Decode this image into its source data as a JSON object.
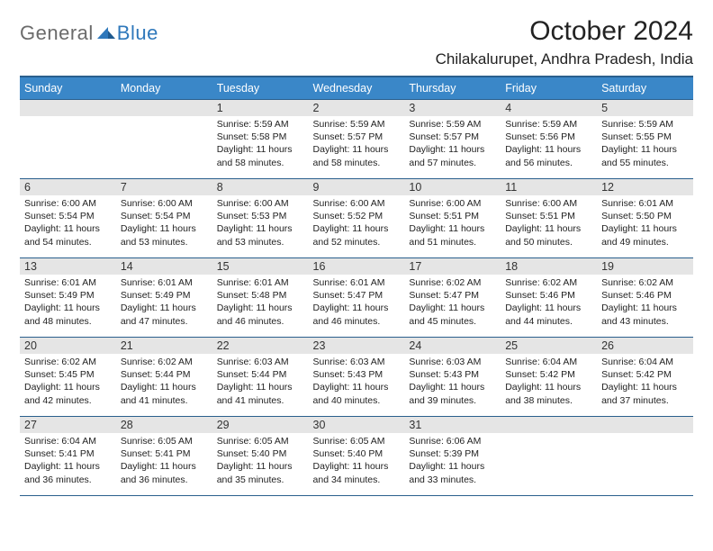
{
  "logo": {
    "part1": "General",
    "part2": "Blue"
  },
  "header": {
    "month_title": "October 2024",
    "location": "Chilakalurupet, Andhra Pradesh, India"
  },
  "colors": {
    "header_bg": "#3a87c8",
    "header_border": "#2a5f8d",
    "daynum_bg": "#e5e5e5",
    "text": "#222222",
    "logo_gray": "#6b6b6b",
    "logo_blue": "#2f78bb"
  },
  "weekdays": [
    "Sunday",
    "Monday",
    "Tuesday",
    "Wednesday",
    "Thursday",
    "Friday",
    "Saturday"
  ],
  "weeks": [
    [
      {
        "n": "",
        "lines": []
      },
      {
        "n": "",
        "lines": []
      },
      {
        "n": "1",
        "lines": [
          "Sunrise: 5:59 AM",
          "Sunset: 5:58 PM",
          "Daylight: 11 hours and 58 minutes."
        ]
      },
      {
        "n": "2",
        "lines": [
          "Sunrise: 5:59 AM",
          "Sunset: 5:57 PM",
          "Daylight: 11 hours and 58 minutes."
        ]
      },
      {
        "n": "3",
        "lines": [
          "Sunrise: 5:59 AM",
          "Sunset: 5:57 PM",
          "Daylight: 11 hours and 57 minutes."
        ]
      },
      {
        "n": "4",
        "lines": [
          "Sunrise: 5:59 AM",
          "Sunset: 5:56 PM",
          "Daylight: 11 hours and 56 minutes."
        ]
      },
      {
        "n": "5",
        "lines": [
          "Sunrise: 5:59 AM",
          "Sunset: 5:55 PM",
          "Daylight: 11 hours and 55 minutes."
        ]
      }
    ],
    [
      {
        "n": "6",
        "lines": [
          "Sunrise: 6:00 AM",
          "Sunset: 5:54 PM",
          "Daylight: 11 hours and 54 minutes."
        ]
      },
      {
        "n": "7",
        "lines": [
          "Sunrise: 6:00 AM",
          "Sunset: 5:54 PM",
          "Daylight: 11 hours and 53 minutes."
        ]
      },
      {
        "n": "8",
        "lines": [
          "Sunrise: 6:00 AM",
          "Sunset: 5:53 PM",
          "Daylight: 11 hours and 53 minutes."
        ]
      },
      {
        "n": "9",
        "lines": [
          "Sunrise: 6:00 AM",
          "Sunset: 5:52 PM",
          "Daylight: 11 hours and 52 minutes."
        ]
      },
      {
        "n": "10",
        "lines": [
          "Sunrise: 6:00 AM",
          "Sunset: 5:51 PM",
          "Daylight: 11 hours and 51 minutes."
        ]
      },
      {
        "n": "11",
        "lines": [
          "Sunrise: 6:00 AM",
          "Sunset: 5:51 PM",
          "Daylight: 11 hours and 50 minutes."
        ]
      },
      {
        "n": "12",
        "lines": [
          "Sunrise: 6:01 AM",
          "Sunset: 5:50 PM",
          "Daylight: 11 hours and 49 minutes."
        ]
      }
    ],
    [
      {
        "n": "13",
        "lines": [
          "Sunrise: 6:01 AM",
          "Sunset: 5:49 PM",
          "Daylight: 11 hours and 48 minutes."
        ]
      },
      {
        "n": "14",
        "lines": [
          "Sunrise: 6:01 AM",
          "Sunset: 5:49 PM",
          "Daylight: 11 hours and 47 minutes."
        ]
      },
      {
        "n": "15",
        "lines": [
          "Sunrise: 6:01 AM",
          "Sunset: 5:48 PM",
          "Daylight: 11 hours and 46 minutes."
        ]
      },
      {
        "n": "16",
        "lines": [
          "Sunrise: 6:01 AM",
          "Sunset: 5:47 PM",
          "Daylight: 11 hours and 46 minutes."
        ]
      },
      {
        "n": "17",
        "lines": [
          "Sunrise: 6:02 AM",
          "Sunset: 5:47 PM",
          "Daylight: 11 hours and 45 minutes."
        ]
      },
      {
        "n": "18",
        "lines": [
          "Sunrise: 6:02 AM",
          "Sunset: 5:46 PM",
          "Daylight: 11 hours and 44 minutes."
        ]
      },
      {
        "n": "19",
        "lines": [
          "Sunrise: 6:02 AM",
          "Sunset: 5:46 PM",
          "Daylight: 11 hours and 43 minutes."
        ]
      }
    ],
    [
      {
        "n": "20",
        "lines": [
          "Sunrise: 6:02 AM",
          "Sunset: 5:45 PM",
          "Daylight: 11 hours and 42 minutes."
        ]
      },
      {
        "n": "21",
        "lines": [
          "Sunrise: 6:02 AM",
          "Sunset: 5:44 PM",
          "Daylight: 11 hours and 41 minutes."
        ]
      },
      {
        "n": "22",
        "lines": [
          "Sunrise: 6:03 AM",
          "Sunset: 5:44 PM",
          "Daylight: 11 hours and 41 minutes."
        ]
      },
      {
        "n": "23",
        "lines": [
          "Sunrise: 6:03 AM",
          "Sunset: 5:43 PM",
          "Daylight: 11 hours and 40 minutes."
        ]
      },
      {
        "n": "24",
        "lines": [
          "Sunrise: 6:03 AM",
          "Sunset: 5:43 PM",
          "Daylight: 11 hours and 39 minutes."
        ]
      },
      {
        "n": "25",
        "lines": [
          "Sunrise: 6:04 AM",
          "Sunset: 5:42 PM",
          "Daylight: 11 hours and 38 minutes."
        ]
      },
      {
        "n": "26",
        "lines": [
          "Sunrise: 6:04 AM",
          "Sunset: 5:42 PM",
          "Daylight: 11 hours and 37 minutes."
        ]
      }
    ],
    [
      {
        "n": "27",
        "lines": [
          "Sunrise: 6:04 AM",
          "Sunset: 5:41 PM",
          "Daylight: 11 hours and 36 minutes."
        ]
      },
      {
        "n": "28",
        "lines": [
          "Sunrise: 6:05 AM",
          "Sunset: 5:41 PM",
          "Daylight: 11 hours and 36 minutes."
        ]
      },
      {
        "n": "29",
        "lines": [
          "Sunrise: 6:05 AM",
          "Sunset: 5:40 PM",
          "Daylight: 11 hours and 35 minutes."
        ]
      },
      {
        "n": "30",
        "lines": [
          "Sunrise: 6:05 AM",
          "Sunset: 5:40 PM",
          "Daylight: 11 hours and 34 minutes."
        ]
      },
      {
        "n": "31",
        "lines": [
          "Sunrise: 6:06 AM",
          "Sunset: 5:39 PM",
          "Daylight: 11 hours and 33 minutes."
        ]
      },
      {
        "n": "",
        "lines": []
      },
      {
        "n": "",
        "lines": []
      }
    ]
  ]
}
